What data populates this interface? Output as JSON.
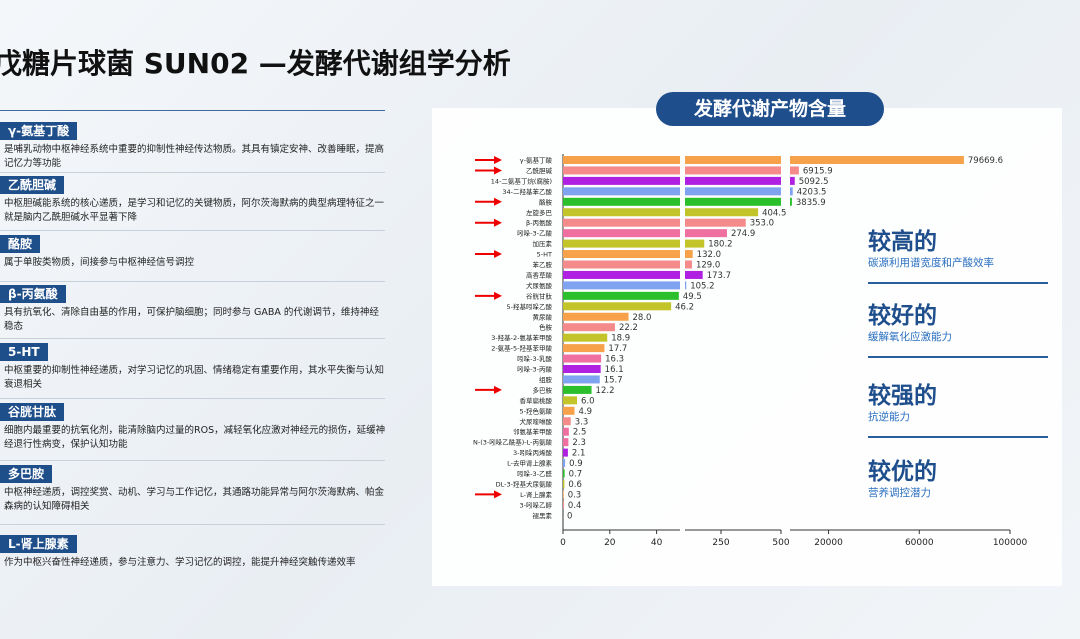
{
  "header": {
    "title": "戊糖片球菌 SUN02 —发酵代谢组学分析"
  },
  "sections": [
    {
      "name": "γ-氨基丁酸",
      "text": "是哺乳动物中枢神经系统中重要的抑制性神经传达物质。其具有镇定安神、改善睡眠，提高记忆力等功能"
    },
    {
      "name": "乙酰胆碱",
      "text": "中枢胆碱能系统的核心递质，是学习和记忆的关键物质，阿尔茨海默病的典型病理特征之一就是脑内乙酰胆碱水平显著下降"
    },
    {
      "name": "酪胺",
      "text": "属于单胺类物质，间接参与中枢神经信号调控"
    },
    {
      "name": "β-丙氨酸",
      "text": "具有抗氧化、清除自由基的作用，可保护脑细胞；同时参与 GABA 的代谢调节，维持神经稳态"
    },
    {
      "name": "5-HT",
      "text": "中枢重要的抑制性神经递质，对学习记忆的巩固、情绪稳定有重要作用，其水平失衡与认知衰退相关"
    },
    {
      "name": "谷胱甘肽",
      "text": "细胞内最重要的抗氧化剂，能清除脑内过量的ROS，减轻氧化应激对神经元的损伤，延缓神经退行性病变，保护认知功能"
    },
    {
      "name": "多巴胺",
      "text": "中枢神经递质，调控奖赏、动机、学习与工作记忆，其通路功能异常与阿尔茨海默病、帕金森病的认知障碍相关"
    },
    {
      "name": "L-肾上腺素",
      "text": "作为中枢兴奋性神经递质，参与注意力、学习记忆的调控，能提升神经突触传递效率"
    }
  ],
  "chart_data": {
    "type": "bar",
    "orientation": "horizontal",
    "title": "发酵代谢产物含量",
    "categories": [
      "γ-氨基丁酸",
      "乙酰胆碱",
      "14-二氨基丁烷(腐胺)",
      "34-二羟基苯乙酸",
      "酪胺",
      "左旋多巴",
      "β-丙氨酸",
      "吲哚-3-乙酸",
      "加压素",
      "5-HT",
      "苯乙胺",
      "高香草酸",
      "犬尿氨酸",
      "谷胱甘肽",
      "5-羟基吲哚乙酸",
      "黄尿酸",
      "色胺",
      "3-羟基-2-氨基苯甲酸",
      "2-氨基-5-羟基苯甲酸",
      "吲哚-3-乳酸",
      "吲哚-3-丙酸",
      "组胺",
      "多巴胺",
      "香草扁桃酸",
      "5-羟色氨酸",
      "犬尿喹啉酸",
      "邻氨基苯甲酸",
      "N-(3-吲哚乙酰基)-L-丙氨酸",
      "3-吲哚丙烯酸",
      "L-去甲肾上腺素",
      "吲哚-3-乙醛",
      "DL-3-羟基犬尿氨酸",
      "L-肾上腺素",
      "3-吲哚乙醇",
      "褪黑素"
    ],
    "values": [
      79669.6,
      6915.9,
      5092.5,
      4203.5,
      3835.9,
      404.5,
      353.0,
      274.9,
      180.2,
      132.0,
      129.0,
      173.7,
      105.2,
      49.5,
      46.2,
      28.0,
      22.2,
      18.9,
      17.7,
      16.3,
      16.1,
      15.7,
      12.2,
      6.0,
      4.9,
      3.3,
      2.5,
      2.3,
      2.1,
      0.9,
      0.7,
      0.6,
      0.3,
      0.4,
      0
    ],
    "value_labels": [
      "79669.6",
      "6915.9",
      "5092.5",
      "4203.5",
      "3835.9",
      "404.5",
      "353.0",
      "274.9",
      "180.2",
      "132.0",
      "129.0",
      "173.7",
      "105.2",
      "49.5",
      "46.2",
      "28.0",
      "22.2",
      "18.9",
      "17.7",
      "16.3",
      "16.1",
      "15.7",
      "12.2",
      "6.0",
      "4.9",
      "3.3",
      "2.5",
      "2.3",
      "2.1",
      "0.9",
      "0.7",
      "0.6",
      "0.3",
      "0.4",
      "0"
    ],
    "colors": [
      "#f7a24b",
      "#f48a8a",
      "#b020e0",
      "#7fa3f0",
      "#2cbf2c",
      "#c3c42a",
      "#f48a8a",
      "#ee6fa0",
      "#c3c42a",
      "#f7a24b",
      "#f48a8a",
      "#b020e0",
      "#7fa3f0",
      "#2cbf2c",
      "#c3c42a",
      "#f7a24b",
      "#f48a8a",
      "#c3c42a",
      "#f7a24b",
      "#ee6fa0",
      "#b020e0",
      "#7fa3f0",
      "#2cbf2c",
      "#c3c42a",
      "#f7a24b",
      "#f48a8a",
      "#ee6fa0",
      "#ee6fa0",
      "#b020e0",
      "#7fa3f0",
      "#2cbf2c",
      "#c3c42a",
      "#f7a24b",
      "#f48a8a",
      "#ee6fa0"
    ],
    "highlight": [
      0,
      1,
      4,
      6,
      9,
      13,
      22,
      32
    ],
    "x_segments": [
      {
        "xlim": [
          0,
          50
        ],
        "xticks": [
          0,
          20,
          40
        ]
      },
      {
        "xlim": [
          100,
          500
        ],
        "xticks": [
          250,
          500
        ]
      },
      {
        "xlim": [
          3000,
          100000
        ],
        "xticks": [
          20000,
          60000,
          100000
        ]
      }
    ]
  },
  "highlights": [
    {
      "title": "较高的",
      "text": "碳源利用谱宽度和产酸效率"
    },
    {
      "title": "较好的",
      "text": "缓解氧化应激能力"
    },
    {
      "title": "较强的",
      "text": "抗逆能力"
    },
    {
      "title": "较优的",
      "text": "营养调控潜力"
    }
  ]
}
